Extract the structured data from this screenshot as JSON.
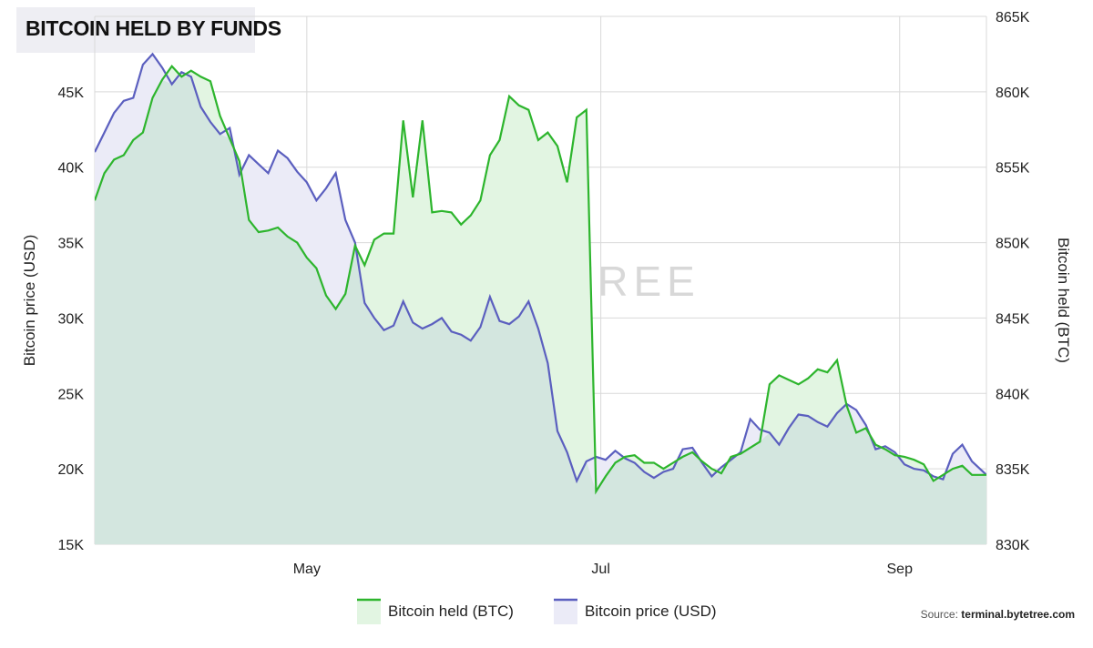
{
  "title": "BITCOIN HELD BY FUNDS",
  "source": {
    "prefix": "Source: ",
    "site": "terminal.bytetree.com"
  },
  "watermark": "BYTETREE",
  "colors": {
    "held_line": "#2db52d",
    "held_fill": "#e2f5e2",
    "price_line": "#5b5fbf",
    "price_fill": "#ebebf7",
    "overlap_fill": "#d3e6df",
    "grid": "#d9d9d9"
  },
  "chart_data": {
    "type": "line",
    "y_left": {
      "label": "Bitcoin price (USD)",
      "range": [
        15000,
        50000
      ],
      "ticks": [
        15000,
        20000,
        25000,
        30000,
        35000,
        40000,
        45000
      ],
      "tick_labels": [
        "15K",
        "20K",
        "25K",
        "30K",
        "35K",
        "40K",
        "45K"
      ]
    },
    "y_right": {
      "label": "Bitcoin held (BTC)",
      "range": [
        830000,
        865000
      ],
      "ticks": [
        830000,
        835000,
        840000,
        845000,
        850000,
        855000,
        860000,
        865000
      ],
      "tick_labels": [
        "830K",
        "835K",
        "840K",
        "845K",
        "850K",
        "855K",
        "860K",
        "865K"
      ]
    },
    "x_range": [
      "2021-03-18",
      "2021-09-19"
    ],
    "x_ticks": [
      {
        "date": "2021-05-01",
        "label": "May"
      },
      {
        "date": "2021-07-01",
        "label": "Jul"
      },
      {
        "date": "2021-09-01",
        "label": "Sep"
      }
    ],
    "grid": true,
    "legend_position": "bottom-center",
    "series": [
      {
        "name": "Bitcoin held (BTC)",
        "axis": "right",
        "points": [
          [
            "2021-03-18",
            852800
          ],
          [
            "2021-03-20",
            854600
          ],
          [
            "2021-03-22",
            855500
          ],
          [
            "2021-03-24",
            855800
          ],
          [
            "2021-03-26",
            856800
          ],
          [
            "2021-03-28",
            857300
          ],
          [
            "2021-03-30",
            859600
          ],
          [
            "2021-04-01",
            860800
          ],
          [
            "2021-04-03",
            861700
          ],
          [
            "2021-04-05",
            861000
          ],
          [
            "2021-04-07",
            861400
          ],
          [
            "2021-04-09",
            861000
          ],
          [
            "2021-04-11",
            860700
          ],
          [
            "2021-04-13",
            858400
          ],
          [
            "2021-04-15",
            856900
          ],
          [
            "2021-04-17",
            855400
          ],
          [
            "2021-04-19",
            851500
          ],
          [
            "2021-04-21",
            850700
          ],
          [
            "2021-04-23",
            850800
          ],
          [
            "2021-04-25",
            851000
          ],
          [
            "2021-04-27",
            850400
          ],
          [
            "2021-04-29",
            850000
          ],
          [
            "2021-05-01",
            849000
          ],
          [
            "2021-05-03",
            848300
          ],
          [
            "2021-05-05",
            846500
          ],
          [
            "2021-05-07",
            845600
          ],
          [
            "2021-05-09",
            846600
          ],
          [
            "2021-05-11",
            849800
          ],
          [
            "2021-05-13",
            848500
          ],
          [
            "2021-05-15",
            850200
          ],
          [
            "2021-05-17",
            850600
          ],
          [
            "2021-05-19",
            850600
          ],
          [
            "2021-05-21",
            858100
          ],
          [
            "2021-05-23",
            853000
          ],
          [
            "2021-05-25",
            858100
          ],
          [
            "2021-05-27",
            852000
          ],
          [
            "2021-05-29",
            852100
          ],
          [
            "2021-05-31",
            852000
          ],
          [
            "2021-06-02",
            851200
          ],
          [
            "2021-06-04",
            851800
          ],
          [
            "2021-06-06",
            852800
          ],
          [
            "2021-06-08",
            855800
          ],
          [
            "2021-06-10",
            856800
          ],
          [
            "2021-06-12",
            859700
          ],
          [
            "2021-06-14",
            859100
          ],
          [
            "2021-06-16",
            858800
          ],
          [
            "2021-06-18",
            856800
          ],
          [
            "2021-06-20",
            857300
          ],
          [
            "2021-06-22",
            856400
          ],
          [
            "2021-06-24",
            854000
          ],
          [
            "2021-06-26",
            858300
          ],
          [
            "2021-06-28",
            858800
          ],
          [
            "2021-06-30",
            833500
          ],
          [
            "2021-07-02",
            834500
          ],
          [
            "2021-07-04",
            835400
          ],
          [
            "2021-07-06",
            835800
          ],
          [
            "2021-07-08",
            835900
          ],
          [
            "2021-07-10",
            835400
          ],
          [
            "2021-07-12",
            835400
          ],
          [
            "2021-07-14",
            835000
          ],
          [
            "2021-07-16",
            835400
          ],
          [
            "2021-07-18",
            835800
          ],
          [
            "2021-07-20",
            836100
          ],
          [
            "2021-07-22",
            835500
          ],
          [
            "2021-07-24",
            835000
          ],
          [
            "2021-07-26",
            834700
          ],
          [
            "2021-07-28",
            835800
          ],
          [
            "2021-07-30",
            836000
          ],
          [
            "2021-08-01",
            836400
          ],
          [
            "2021-08-03",
            836800
          ],
          [
            "2021-08-05",
            840600
          ],
          [
            "2021-08-07",
            841200
          ],
          [
            "2021-08-09",
            840900
          ],
          [
            "2021-08-11",
            840600
          ],
          [
            "2021-08-13",
            841000
          ],
          [
            "2021-08-15",
            841600
          ],
          [
            "2021-08-17",
            841400
          ],
          [
            "2021-08-19",
            842200
          ],
          [
            "2021-08-21",
            839200
          ],
          [
            "2021-08-23",
            837400
          ],
          [
            "2021-08-25",
            837700
          ],
          [
            "2021-08-27",
            836600
          ],
          [
            "2021-08-29",
            836300
          ],
          [
            "2021-08-31",
            835900
          ],
          [
            "2021-09-02",
            835800
          ],
          [
            "2021-09-04",
            835600
          ],
          [
            "2021-09-06",
            835300
          ],
          [
            "2021-09-08",
            834200
          ],
          [
            "2021-09-10",
            834600
          ],
          [
            "2021-09-12",
            835000
          ],
          [
            "2021-09-14",
            835200
          ],
          [
            "2021-09-16",
            834600
          ],
          [
            "2021-09-19",
            834600
          ]
        ]
      },
      {
        "name": "Bitcoin price (USD)",
        "axis": "left",
        "points": [
          [
            "2021-03-18",
            41000
          ],
          [
            "2021-03-20",
            42300
          ],
          [
            "2021-03-22",
            43600
          ],
          [
            "2021-03-24",
            44400
          ],
          [
            "2021-03-26",
            44600
          ],
          [
            "2021-03-28",
            46800
          ],
          [
            "2021-03-30",
            47500
          ],
          [
            "2021-04-01",
            46600
          ],
          [
            "2021-04-03",
            45500
          ],
          [
            "2021-04-05",
            46300
          ],
          [
            "2021-04-07",
            46000
          ],
          [
            "2021-04-09",
            44000
          ],
          [
            "2021-04-11",
            43000
          ],
          [
            "2021-04-13",
            42200
          ],
          [
            "2021-04-15",
            42600
          ],
          [
            "2021-04-17",
            39500
          ],
          [
            "2021-04-19",
            40800
          ],
          [
            "2021-04-21",
            40200
          ],
          [
            "2021-04-23",
            39600
          ],
          [
            "2021-04-25",
            41100
          ],
          [
            "2021-04-27",
            40600
          ],
          [
            "2021-04-29",
            39700
          ],
          [
            "2021-05-01",
            39000
          ],
          [
            "2021-05-03",
            37800
          ],
          [
            "2021-05-05",
            38600
          ],
          [
            "2021-05-07",
            39600
          ],
          [
            "2021-05-09",
            36500
          ],
          [
            "2021-05-11",
            35000
          ],
          [
            "2021-05-13",
            31000
          ],
          [
            "2021-05-15",
            30000
          ],
          [
            "2021-05-17",
            29200
          ],
          [
            "2021-05-19",
            29500
          ],
          [
            "2021-05-21",
            31100
          ],
          [
            "2021-05-23",
            29700
          ],
          [
            "2021-05-25",
            29300
          ],
          [
            "2021-05-27",
            29600
          ],
          [
            "2021-05-29",
            30000
          ],
          [
            "2021-05-31",
            29100
          ],
          [
            "2021-06-02",
            28900
          ],
          [
            "2021-06-04",
            28500
          ],
          [
            "2021-06-06",
            29400
          ],
          [
            "2021-06-08",
            31400
          ],
          [
            "2021-06-10",
            29800
          ],
          [
            "2021-06-12",
            29600
          ],
          [
            "2021-06-14",
            30100
          ],
          [
            "2021-06-16",
            31100
          ],
          [
            "2021-06-18",
            29300
          ],
          [
            "2021-06-20",
            27000
          ],
          [
            "2021-06-22",
            22500
          ],
          [
            "2021-06-24",
            21100
          ],
          [
            "2021-06-26",
            19200
          ],
          [
            "2021-06-28",
            20500
          ],
          [
            "2021-06-30",
            20800
          ],
          [
            "2021-07-02",
            20600
          ],
          [
            "2021-07-04",
            21200
          ],
          [
            "2021-07-06",
            20700
          ],
          [
            "2021-07-08",
            20400
          ],
          [
            "2021-07-10",
            19800
          ],
          [
            "2021-07-12",
            19400
          ],
          [
            "2021-07-14",
            19800
          ],
          [
            "2021-07-16",
            20000
          ],
          [
            "2021-07-18",
            21300
          ],
          [
            "2021-07-20",
            21400
          ],
          [
            "2021-07-22",
            20400
          ],
          [
            "2021-07-24",
            19500
          ],
          [
            "2021-07-26",
            20100
          ],
          [
            "2021-07-28",
            20600
          ],
          [
            "2021-07-30",
            21100
          ],
          [
            "2021-08-01",
            23300
          ],
          [
            "2021-08-03",
            22600
          ],
          [
            "2021-08-05",
            22400
          ],
          [
            "2021-08-07",
            21600
          ],
          [
            "2021-08-09",
            22700
          ],
          [
            "2021-08-11",
            23600
          ],
          [
            "2021-08-13",
            23500
          ],
          [
            "2021-08-15",
            23100
          ],
          [
            "2021-08-17",
            22800
          ],
          [
            "2021-08-19",
            23700
          ],
          [
            "2021-08-21",
            24300
          ],
          [
            "2021-08-23",
            23900
          ],
          [
            "2021-08-25",
            22900
          ],
          [
            "2021-08-27",
            21300
          ],
          [
            "2021-08-29",
            21500
          ],
          [
            "2021-08-31",
            21100
          ],
          [
            "2021-09-02",
            20300
          ],
          [
            "2021-09-04",
            20000
          ],
          [
            "2021-09-06",
            19900
          ],
          [
            "2021-09-08",
            19500
          ],
          [
            "2021-09-10",
            19300
          ],
          [
            "2021-09-12",
            21000
          ],
          [
            "2021-09-14",
            21600
          ],
          [
            "2021-09-16",
            20500
          ],
          [
            "2021-09-19",
            19600
          ]
        ]
      }
    ]
  }
}
